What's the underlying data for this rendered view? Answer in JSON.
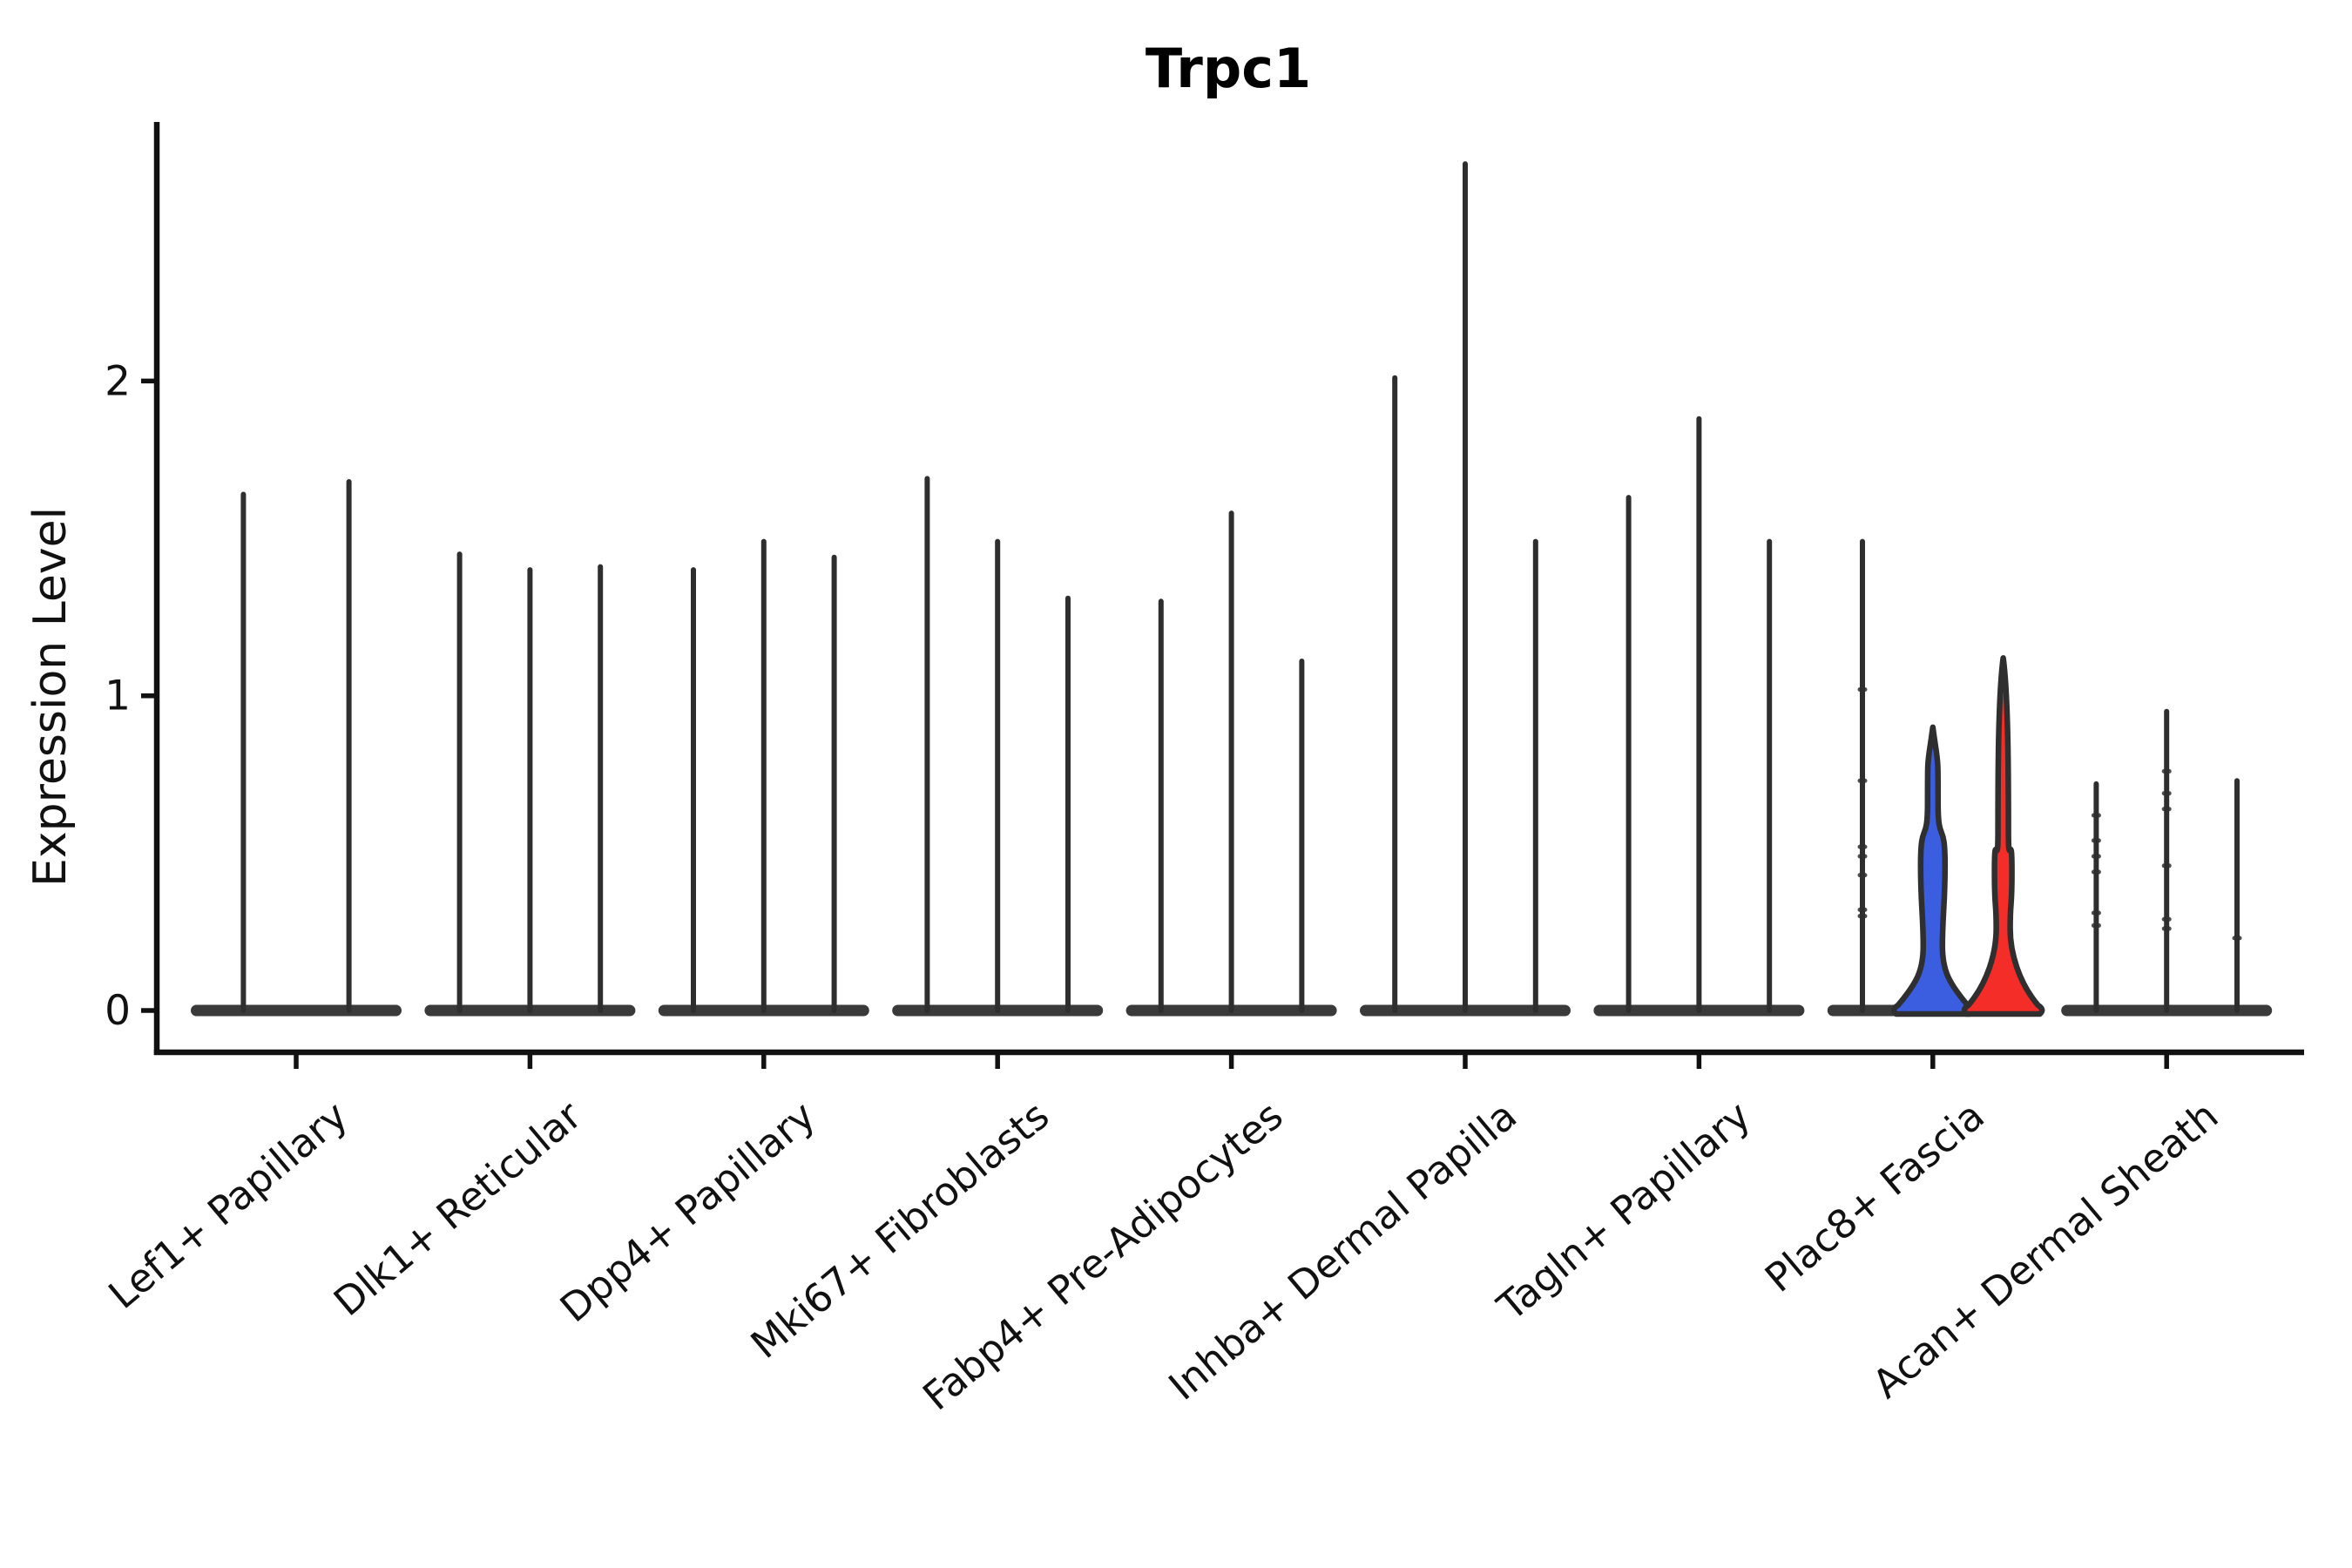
{
  "title": "Trpc1",
  "axes": {
    "ylabel": "Expression Level",
    "xlabel": "",
    "ytick_labels": [
      "0",
      "1",
      "2"
    ]
  },
  "chart_data": {
    "type": "violin",
    "title": "Trpc1",
    "subtitle": "",
    "xlabel": "",
    "ylabel": "Expression Level",
    "ylim": [
      0,
      2.82
    ],
    "yticks": [
      0,
      1,
      2
    ],
    "grid": "off",
    "legend": "none",
    "categories": [
      "Lef1+ Papillary",
      "Dlk1+ Reticular",
      "Dpp4+ Papillary",
      "Mki67+ Fibroblasts",
      "Fabp4+ Pre-Adipocytes",
      "Inhba+ Dermal Papilla",
      "Tagln+ Papillary",
      "Plac8+ Fascia",
      "Acan+ Dermal Sheath"
    ],
    "groups": [
      {
        "category": "Lef1+ Papillary",
        "violins": [
          {
            "style": "spike",
            "max": 1.64
          },
          {
            "style": "spike",
            "max": 1.68
          }
        ]
      },
      {
        "category": "Dlk1+ Reticular",
        "violins": [
          {
            "style": "spike",
            "max": 1.45
          },
          {
            "style": "spike",
            "max": 1.4
          },
          {
            "style": "spike",
            "max": 1.41
          }
        ]
      },
      {
        "category": "Dpp4+ Papillary",
        "violins": [
          {
            "style": "spike",
            "max": 1.4
          },
          {
            "style": "spike",
            "max": 1.49
          },
          {
            "style": "spike",
            "max": 1.44
          }
        ]
      },
      {
        "category": "Mki67+ Fibroblasts",
        "violins": [
          {
            "style": "spike",
            "max": 1.69
          },
          {
            "style": "spike",
            "max": 1.49
          },
          {
            "style": "spike",
            "max": 1.31
          }
        ]
      },
      {
        "category": "Fabp4+ Pre-Adipocytes",
        "violins": [
          {
            "style": "spike",
            "max": 1.3
          },
          {
            "style": "spike",
            "max": 1.58
          },
          {
            "style": "spike",
            "max": 1.11
          }
        ]
      },
      {
        "category": "Inhba+ Dermal Papilla",
        "violins": [
          {
            "style": "spike",
            "max": 2.01
          },
          {
            "style": "spike",
            "max": 2.69
          },
          {
            "style": "spike",
            "max": 1.49
          }
        ]
      },
      {
        "category": "Tagln+ Papillary",
        "violins": [
          {
            "style": "spike",
            "max": 1.63
          },
          {
            "style": "spike",
            "max": 1.88
          },
          {
            "style": "spike",
            "max": 1.49
          }
        ]
      },
      {
        "category": "Plac8+ Fascia",
        "violins": [
          {
            "style": "spike",
            "max": 1.49,
            "points": [
              1.02,
              0.73,
              0.52,
              0.49,
              0.43,
              0.32,
              0.3
            ]
          },
          {
            "style": "filled",
            "max": 0.9,
            "fill": "#3B5EE1",
            "bulge_top": 0.66,
            "bulge_center": 0.46,
            "bulge_halfw": 14,
            "pinch": 0.205,
            "pinch_halfw": 11
          },
          {
            "style": "filled",
            "max": 1.12,
            "fill": "#F42D28",
            "bulge_top": 0.57,
            "bulge_center": 0.44,
            "bulge_halfw": 10,
            "pinch": 0.26,
            "pinch_halfw": 8
          }
        ]
      },
      {
        "category": "Acan+ Dermal Sheath",
        "violins": [
          {
            "style": "spike",
            "max": 0.72,
            "points": [
              0.62,
              0.54,
              0.49,
              0.44,
              0.31,
              0.27
            ]
          },
          {
            "style": "spike",
            "max": 0.95,
            "points": [
              0.76,
              0.69,
              0.64,
              0.46,
              0.29,
              0.26
            ]
          },
          {
            "style": "spike",
            "max": 0.73,
            "points": [
              0.23
            ]
          }
        ]
      }
    ],
    "colors": {
      "spike": "#2e2e2e",
      "base_bar": "#3a3a3a",
      "axis": "#111111",
      "split_blue": "#3B5EE1",
      "split_red": "#F42D28",
      "violin_outline": "#2f2f2f"
    }
  }
}
